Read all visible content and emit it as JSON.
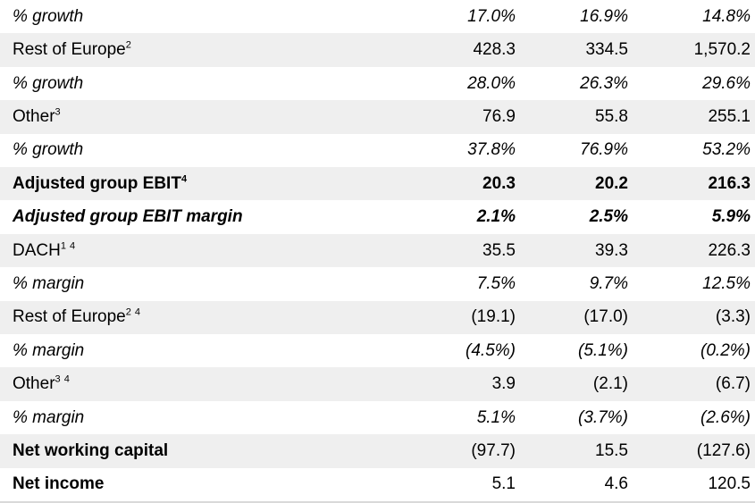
{
  "colors": {
    "shaded_row": "#efefef",
    "bottom_border": "#d9d9d9",
    "text": "#000000"
  },
  "table": {
    "rows": [
      {
        "label": "% growth",
        "sup": "",
        "values": [
          "17.0%",
          "16.9%",
          "14.8%"
        ]
      },
      {
        "label": "Rest of Europe",
        "sup": "2",
        "values": [
          "428.3",
          "334.5",
          "1,570.2"
        ]
      },
      {
        "label": "% growth",
        "sup": "",
        "values": [
          "28.0%",
          "26.3%",
          "29.6%"
        ]
      },
      {
        "label": "Other",
        "sup": "3",
        "values": [
          "76.9",
          "55.8",
          "255.1"
        ]
      },
      {
        "label": "% growth",
        "sup": "",
        "values": [
          "37.8%",
          "76.9%",
          "53.2%"
        ]
      },
      {
        "label": "Adjusted group EBIT",
        "sup": "4",
        "values": [
          "20.3",
          "20.2",
          "216.3"
        ]
      },
      {
        "label": "Adjusted group EBIT margin",
        "sup": "",
        "values": [
          "2.1%",
          "2.5%",
          "5.9%"
        ]
      },
      {
        "label": "DACH",
        "sup": "1 4",
        "values": [
          "35.5",
          "39.3",
          "226.3"
        ]
      },
      {
        "label": "% margin",
        "sup": "",
        "values": [
          "7.5%",
          "9.7%",
          "12.5%"
        ]
      },
      {
        "label": "Rest of Europe",
        "sup": "2 4",
        "values": [
          "(19.1)",
          "(17.0)",
          "(3.3)"
        ]
      },
      {
        "label": "% margin",
        "sup": "",
        "values": [
          "(4.5%)",
          "(5.1%)",
          "(0.2%)"
        ]
      },
      {
        "label": "Other",
        "sup": "3 4",
        "values": [
          "3.9",
          "(2.1)",
          "(6.7)"
        ]
      },
      {
        "label": "% margin",
        "sup": "",
        "values": [
          "5.1%",
          "(3.7%)",
          "(2.6%)"
        ]
      },
      {
        "label": "Net working capital",
        "sup": "",
        "values": [
          "(97.7)",
          "15.5",
          "(127.6)"
        ]
      },
      {
        "label": "Net income",
        "sup": "",
        "values": [
          "5.1",
          "4.6",
          "120.5"
        ]
      }
    ]
  }
}
